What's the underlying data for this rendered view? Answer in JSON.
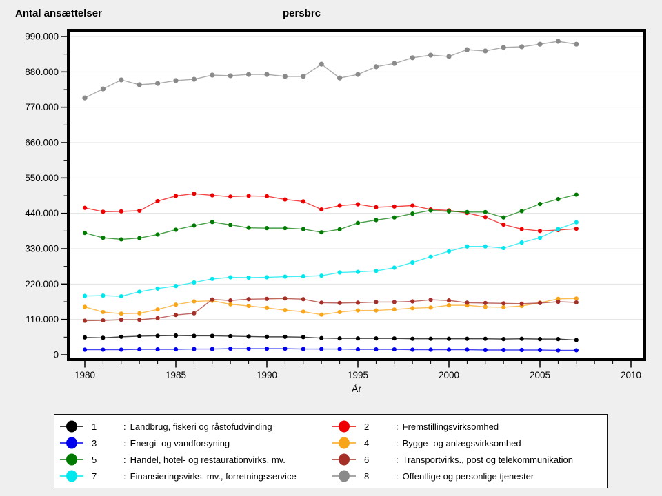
{
  "chart_data": {
    "type": "line",
    "ylabel": "Antal ansættelser",
    "series_variable_label": "persbrc",
    "xlabel": "År",
    "legend_position": "bottom",
    "legend_separator": ":",
    "grid": "horizontal-major",
    "ylim": [
      0,
      990000
    ],
    "xlim": [
      1979,
      2011
    ],
    "y_tick_values": [
      0,
      110000,
      220000,
      330000,
      440000,
      550000,
      660000,
      770000,
      880000,
      990000
    ],
    "y_tick_labels": [
      "0",
      "110.000",
      "220.000",
      "330.000",
      "440.000",
      "550.000",
      "660.000",
      "770.000",
      "880.000",
      "990.000"
    ],
    "x_ticks_major": [
      1980,
      1985,
      1990,
      1995,
      2000,
      2005,
      2010
    ],
    "x": [
      1980,
      1981,
      1982,
      1983,
      1984,
      1985,
      1986,
      1987,
      1988,
      1989,
      1990,
      1991,
      1992,
      1993,
      1994,
      1995,
      1996,
      1997,
      1998,
      1999,
      2000,
      2001,
      2002,
      2003,
      2004,
      2005,
      2006,
      2007
    ],
    "legend_order_left": [
      "1",
      "3",
      "5",
      "7"
    ],
    "legend_order_right": [
      "2",
      "4",
      "6",
      "8"
    ],
    "series": [
      {
        "id": "1",
        "name": "Landbrug, fiskeri og råstofudvinding",
        "color": "#000000",
        "values": [
          54000,
          53000,
          56000,
          58000,
          59000,
          60000,
          59000,
          59000,
          58000,
          57000,
          56000,
          56000,
          55000,
          52000,
          51000,
          51000,
          51000,
          51000,
          50000,
          50000,
          50000,
          50000,
          50000,
          49000,
          50000,
          49000,
          49000,
          46000
        ]
      },
      {
        "id": "2",
        "name": "Fremstillingsvirksomhed",
        "color": "#ee0000",
        "values": [
          457000,
          445000,
          446000,
          448000,
          478000,
          494000,
          501000,
          496000,
          492000,
          494000,
          493000,
          483000,
          477000,
          452000,
          464000,
          468000,
          459000,
          461000,
          464000,
          452000,
          449000,
          441000,
          428000,
          405000,
          391000,
          385000,
          388000,
          392000
        ]
      },
      {
        "id": "3",
        "name": "Energi- og vandforsyning",
        "color": "#0000ee",
        "values": [
          16000,
          16000,
          16000,
          17000,
          17000,
          17000,
          18000,
          18000,
          19000,
          19000,
          19000,
          19000,
          18000,
          18000,
          18000,
          17000,
          17000,
          17000,
          16000,
          16000,
          16000,
          16000,
          15000,
          15000,
          15000,
          15000,
          14000,
          14000
        ]
      },
      {
        "id": "4",
        "name": "Bygge- og anlægsvirksomhed",
        "color": "#f9a51a",
        "values": [
          149000,
          133000,
          128000,
          129000,
          141000,
          156000,
          166000,
          168000,
          157000,
          152000,
          146000,
          139000,
          134000,
          125000,
          133000,
          138000,
          138000,
          141000,
          145000,
          147000,
          154000,
          154000,
          149000,
          148000,
          152000,
          162000,
          174000,
          175000
        ]
      },
      {
        "id": "5",
        "name": "Handel, hotel- og restaurationvirks. mv.",
        "color": "#007a00",
        "values": [
          379000,
          364000,
          359000,
          363000,
          374000,
          389000,
          402000,
          413000,
          404000,
          395000,
          394000,
          394000,
          391000,
          381000,
          390000,
          410000,
          419000,
          427000,
          439000,
          449000,
          446000,
          444000,
          444000,
          427000,
          447000,
          469000,
          484000,
          498000
        ]
      },
      {
        "id": "6",
        "name": "Transportvirks., post og telekommunikation",
        "color": "#a52f26",
        "values": [
          106000,
          107000,
          109000,
          109000,
          114000,
          124000,
          129000,
          172000,
          169000,
          173000,
          174000,
          175000,
          173000,
          162000,
          161000,
          162000,
          164000,
          164000,
          166000,
          171000,
          169000,
          162000,
          161000,
          160000,
          159000,
          161000,
          165000,
          163000
        ]
      },
      {
        "id": "7",
        "name": "Finansieringsvirks. mv., forretningsservice",
        "color": "#00e8ee",
        "values": [
          183000,
          184000,
          182000,
          196000,
          206000,
          214000,
          225000,
          236000,
          241000,
          240000,
          241000,
          243000,
          244000,
          246000,
          256000,
          258000,
          261000,
          271000,
          287000,
          305000,
          322000,
          337000,
          337000,
          332000,
          349000,
          364000,
          391000,
          412000
        ]
      },
      {
        "id": "8",
        "name": "Offentlige og personlige tjenester",
        "color": "#8a8a8a",
        "values": [
          799000,
          827000,
          855000,
          840000,
          844000,
          853000,
          857000,
          870000,
          868000,
          872000,
          872000,
          866000,
          866000,
          904000,
          861000,
          872000,
          896000,
          906000,
          924000,
          932000,
          928000,
          949000,
          945000,
          956000,
          958000,
          966000,
          975000,
          966000
        ]
      }
    ]
  },
  "colors": {
    "page_background": "#efefef",
    "plot_background": "#ffffff",
    "frame": "#000000",
    "gridline": "#e3e3e3"
  }
}
